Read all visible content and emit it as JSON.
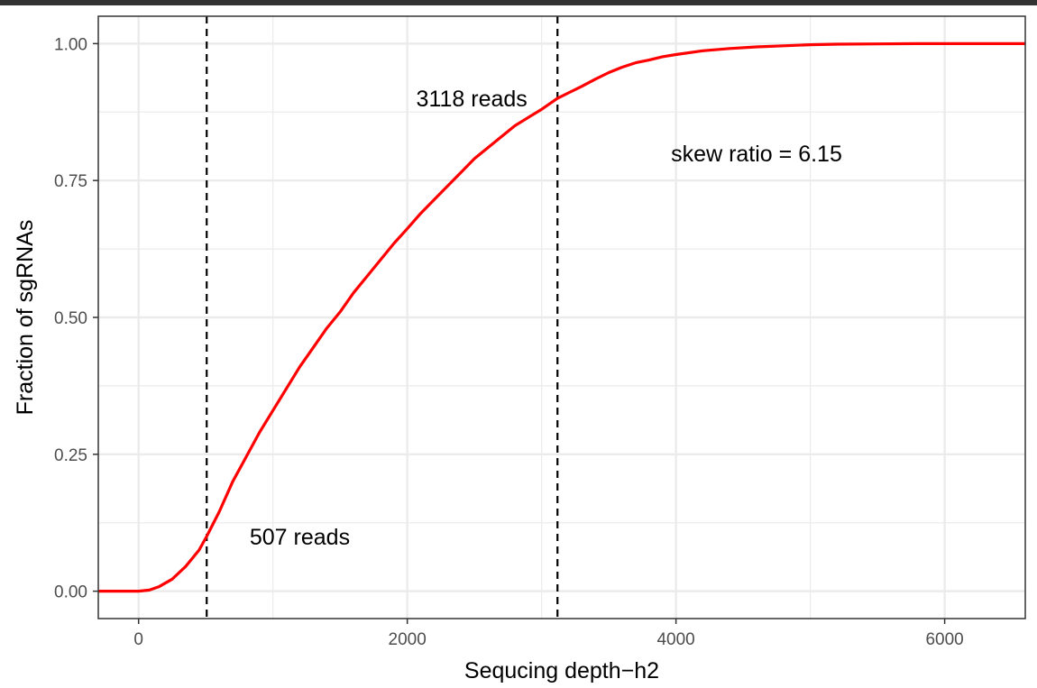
{
  "chart_data": {
    "type": "line",
    "title": "",
    "xlabel": "Sequcing depth−h2",
    "ylabel": "Fraction of sgRNAs",
    "xlim": [
      -300,
      6600
    ],
    "ylim": [
      -0.05,
      1.05
    ],
    "x_ticks": [
      0,
      2000,
      4000,
      6000
    ],
    "x_tick_labels": [
      "0",
      "2000",
      "4000",
      "6000"
    ],
    "y_ticks": [
      0,
      0.25,
      0.5,
      0.75,
      1.0
    ],
    "y_tick_labels": [
      "0.00",
      "0.25",
      "0.50",
      "0.75",
      "1.00"
    ],
    "grid": true,
    "legend": "none",
    "series": [
      {
        "color": "#ff0000",
        "x": [
          -300,
          0,
          80,
          150,
          250,
          350,
          450,
          507,
          600,
          700,
          800,
          900,
          1000,
          1100,
          1200,
          1300,
          1400,
          1500,
          1600,
          1700,
          1800,
          1900,
          2000,
          2100,
          2200,
          2300,
          2400,
          2500,
          2600,
          2700,
          2800,
          2900,
          3000,
          3118,
          3200,
          3300,
          3400,
          3500,
          3600,
          3700,
          3800,
          3900,
          4000,
          4200,
          4400,
          4600,
          4800,
          5000,
          5200,
          5500,
          5800,
          6000,
          6300,
          6600
        ],
        "y": [
          0,
          0,
          0.002,
          0.008,
          0.022,
          0.045,
          0.075,
          0.1,
          0.145,
          0.2,
          0.245,
          0.29,
          0.33,
          0.37,
          0.41,
          0.445,
          0.48,
          0.51,
          0.545,
          0.575,
          0.605,
          0.635,
          0.662,
          0.69,
          0.715,
          0.74,
          0.765,
          0.79,
          0.81,
          0.83,
          0.85,
          0.865,
          0.88,
          0.9,
          0.91,
          0.922,
          0.935,
          0.947,
          0.957,
          0.965,
          0.97,
          0.976,
          0.98,
          0.987,
          0.991,
          0.994,
          0.996,
          0.998,
          0.999,
          0.9995,
          1.0,
          1.0,
          1.0,
          1.0
        ]
      }
    ],
    "vlines": [
      507,
      3118
    ],
    "annotations": [
      {
        "text": "507 reads",
        "x": 1200,
        "y": 0.1
      },
      {
        "text": "3118 reads",
        "x": 2480,
        "y": 0.9
      },
      {
        "text": "skew ratio = 6.15",
        "x": 4600,
        "y": 0.8
      }
    ]
  }
}
